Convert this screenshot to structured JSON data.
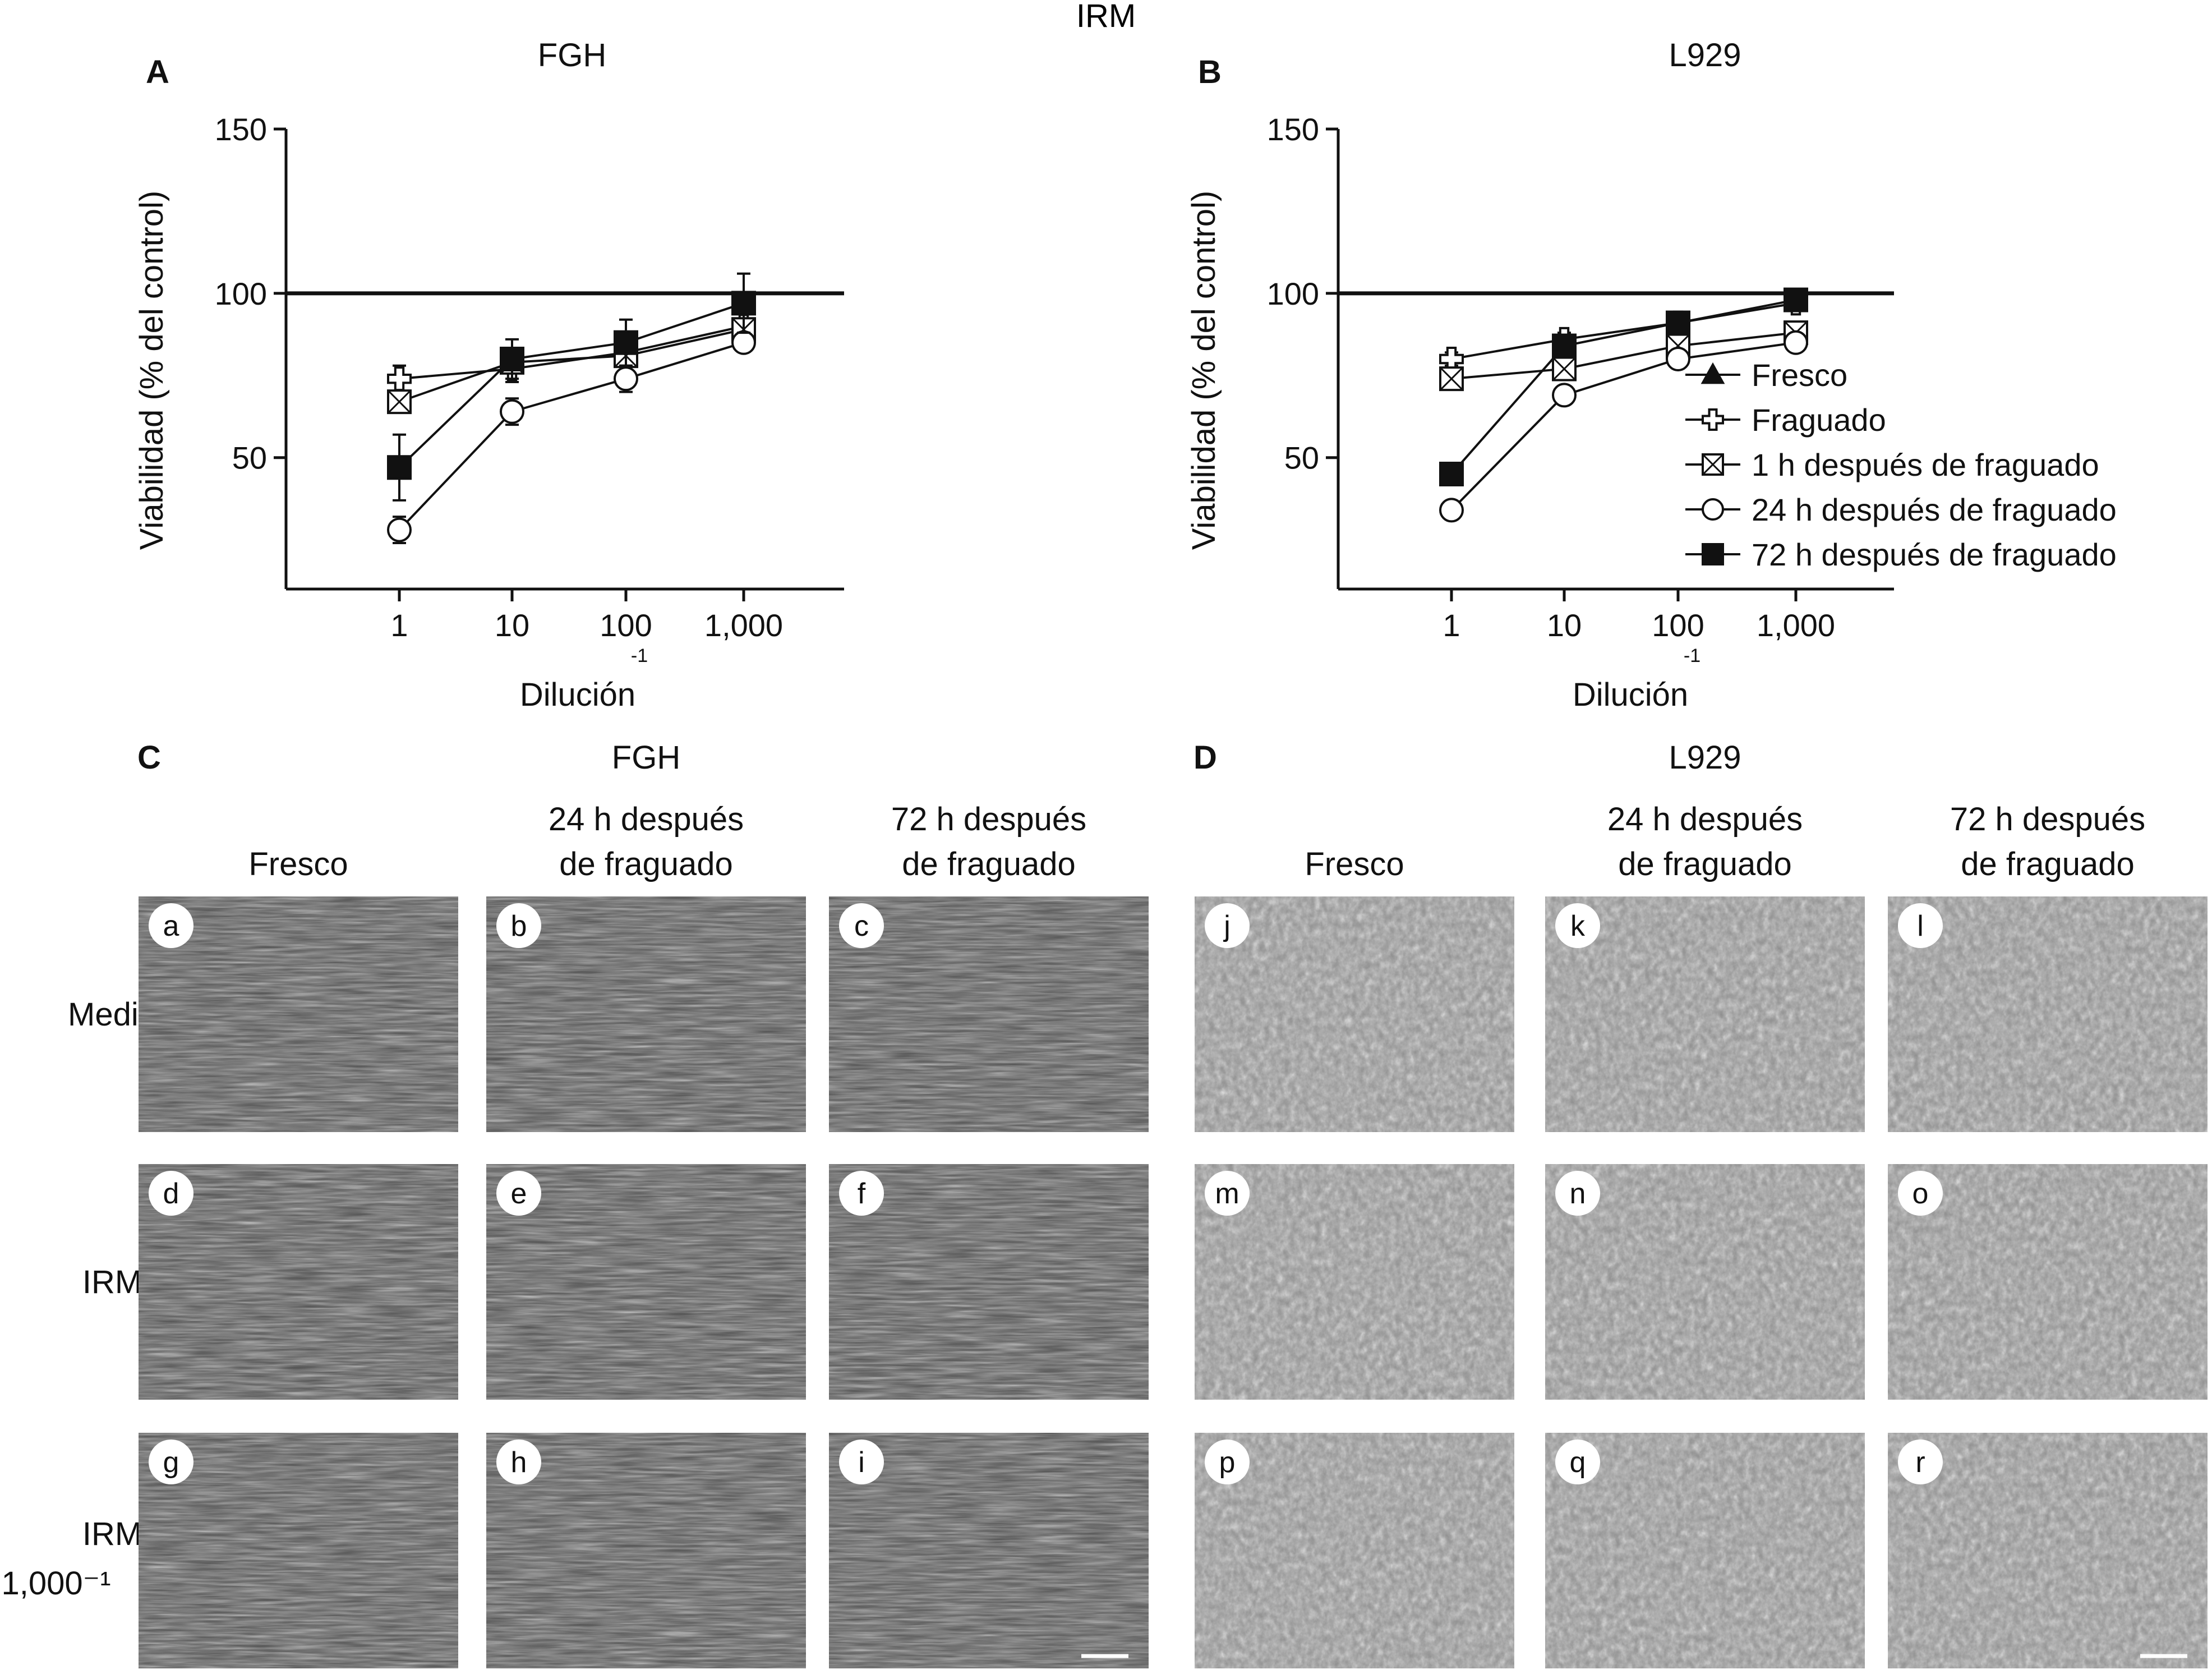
{
  "figure": {
    "main_title": "IRM",
    "colors": {
      "text": "#111111",
      "line": "#111111",
      "panel_border": "#333333",
      "bubble_fill": "#ffffff"
    }
  },
  "chart_data": [
    {
      "type": "line",
      "panel": "A",
      "title": "FGH",
      "xlabel": "Dilución",
      "xlabel_superscript": "-1",
      "ylabel": "Viabilidad (% del control)",
      "x": [
        "1",
        "10",
        "100",
        "1,000"
      ],
      "x_scale": "log",
      "yticks": [
        "50",
        "100",
        "150"
      ],
      "ylim": [
        10,
        150
      ],
      "reference_line": 100,
      "grid": false,
      "series": [
        {
          "name": "Fresco",
          "marker": "triangle-filled",
          "values": [
            null,
            null,
            null,
            null
          ]
        },
        {
          "name": "Fraguado",
          "marker": "cross-open",
          "values": [
            74,
            77,
            82,
            90
          ],
          "errors": [
            4,
            4,
            3,
            2
          ]
        },
        {
          "name": "1 h después de fraguado",
          "marker": "square-x",
          "values": [
            67,
            79,
            81,
            89
          ],
          "errors": [
            3,
            3,
            3,
            2
          ]
        },
        {
          "name": "24 h después de fraguado",
          "marker": "circle-open",
          "values": [
            28,
            64,
            74,
            85
          ],
          "errors": [
            4,
            4,
            4,
            2
          ]
        },
        {
          "name": "72 h después de fraguado",
          "marker": "square-filled",
          "values": [
            47,
            80,
            85,
            97
          ],
          "errors": [
            10,
            6,
            7,
            9
          ]
        }
      ]
    },
    {
      "type": "line",
      "panel": "B",
      "title": "L929",
      "xlabel": "Dilución",
      "xlabel_superscript": "-1",
      "ylabel": "Viabilidad (% del control)",
      "x": [
        "1",
        "10",
        "100",
        "1,000"
      ],
      "x_scale": "log",
      "yticks": [
        "50",
        "100",
        "150"
      ],
      "ylim": [
        10,
        150
      ],
      "reference_line": 100,
      "grid": false,
      "legend_position": "right",
      "legend": [
        "Fresco",
        "Fraguado",
        "1 h después de fraguado",
        "24 h después de fraguado",
        "72 h después de fraguado"
      ],
      "series": [
        {
          "name": "Fresco",
          "marker": "triangle-filled",
          "values": [
            null,
            null,
            null,
            null
          ]
        },
        {
          "name": "Fraguado",
          "marker": "cross-open",
          "values": [
            80,
            86,
            91,
            97
          ],
          "errors": [
            2,
            2,
            2,
            2
          ]
        },
        {
          "name": "1 h después de fraguado",
          "marker": "square-x",
          "values": [
            74,
            77,
            84,
            88
          ],
          "errors": [
            2,
            2,
            2,
            2
          ]
        },
        {
          "name": "24 h después de fraguado",
          "marker": "circle-open",
          "values": [
            34,
            69,
            80,
            85
          ],
          "errors": [
            2,
            2,
            2,
            2
          ]
        },
        {
          "name": "72 h después de fraguado",
          "marker": "square-filled",
          "values": [
            45,
            84,
            91,
            98
          ],
          "errors": [
            1,
            2,
            2,
            2
          ]
        }
      ]
    }
  ],
  "micrographs": {
    "C": {
      "letter": "C",
      "title": "FGH",
      "columns": [
        "Fresco",
        "24 h después\nde fraguado",
        "72 h después\nde fraguado"
      ],
      "rows": [
        "Medio",
        "IRM",
        "IRM\n1,000⁻¹"
      ],
      "letters": [
        [
          "a",
          "b",
          "c"
        ],
        [
          "d",
          "e",
          "f"
        ],
        [
          "g",
          "h",
          "i"
        ]
      ]
    },
    "D": {
      "letter": "D",
      "title": "L929",
      "columns": [
        "Fresco",
        "24 h después\nde fraguado",
        "72 h después\nde fraguado"
      ],
      "letters": [
        [
          "j",
          "k",
          "l"
        ],
        [
          "m",
          "n",
          "o"
        ],
        [
          "p",
          "q",
          "r"
        ]
      ]
    }
  }
}
